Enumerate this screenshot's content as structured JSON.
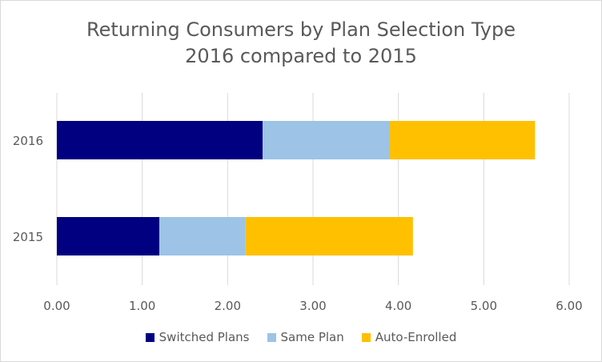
{
  "chart_data": {
    "type": "bar",
    "orientation": "horizontal",
    "stacked": true,
    "title": [
      "Returning Consumers by Plan Selection Type",
      "2016 compared to 2015"
    ],
    "categories": [
      "2016",
      "2015"
    ],
    "series": [
      {
        "name": "Switched Plans",
        "color": "#000080",
        "values": [
          2.41,
          1.2
        ]
      },
      {
        "name": "Same Plan",
        "color": "#9DC3E6",
        "values": [
          1.49,
          1.01
        ]
      },
      {
        "name": "Auto-Enrolled",
        "color": "#FFC000",
        "values": [
          1.7,
          1.96
        ]
      }
    ],
    "x_ticks": [
      "0.00",
      "1.00",
      "2.00",
      "3.00",
      "4.00",
      "5.00",
      "6.00"
    ],
    "xlim": [
      0,
      6
    ],
    "grid": true,
    "legend_position": "bottom"
  }
}
